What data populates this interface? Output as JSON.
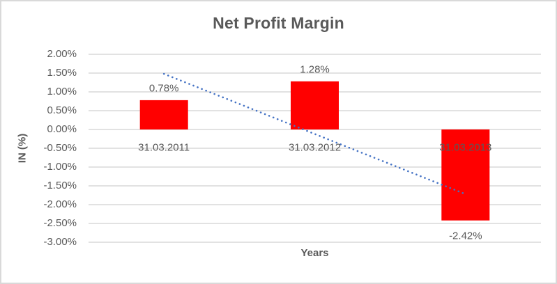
{
  "chart_data": {
    "type": "bar",
    "title": "Net Profit Margin",
    "xlabel": "Years",
    "ylabel": "IN (%)",
    "categories": [
      "31.03.2011",
      "31.03.2012",
      "31.03.2013"
    ],
    "values": [
      0.78,
      1.28,
      -2.42
    ],
    "data_labels": [
      "0.78%",
      "1.28%",
      "-2.42%"
    ],
    "series_name": "Net Profit Margin",
    "ylim": [
      -3.0,
      2.0
    ],
    "y_ticks": [
      {
        "value": 2.0,
        "label": "2.00%"
      },
      {
        "value": 1.5,
        "label": "1.50%"
      },
      {
        "value": 1.0,
        "label": "1.00%"
      },
      {
        "value": 0.5,
        "label": "0.50%"
      },
      {
        "value": 0.0,
        "label": "0.00%"
      },
      {
        "value": -0.5,
        "label": "-0.50%"
      },
      {
        "value": -1.0,
        "label": "-1.00%"
      },
      {
        "value": -1.5,
        "label": "-1.50%"
      },
      {
        "value": -2.0,
        "label": "-2.00%"
      },
      {
        "value": -2.5,
        "label": "-2.50%"
      },
      {
        "value": -3.0,
        "label": "-3.00%"
      }
    ],
    "grid": true,
    "legend": false,
    "trendline": {
      "type": "linear",
      "style": "dotted",
      "start_value": 1.48,
      "end_value": -1.72
    }
  },
  "colors": {
    "bar": "#ff0000",
    "trendline": "#4472c4",
    "gridline": "#d9d9d9",
    "border": "#d9d9d9",
    "text": "#595959"
  }
}
